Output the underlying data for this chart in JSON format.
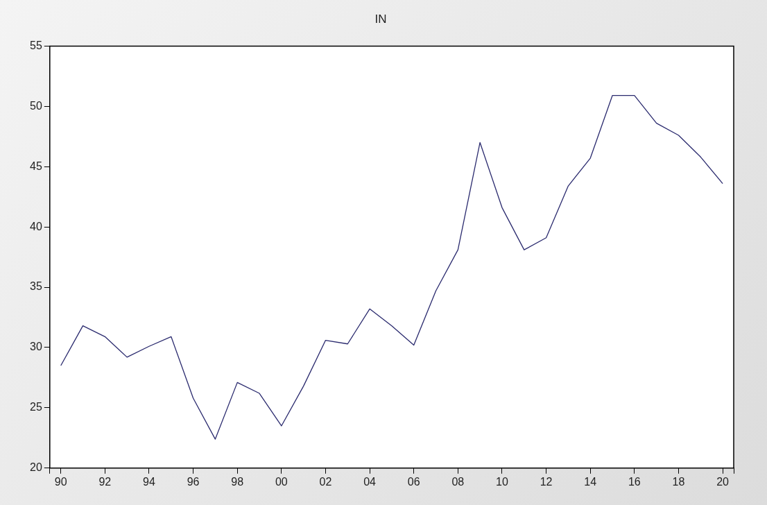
{
  "chart_data": {
    "type": "line",
    "title": "IN",
    "x": [
      1990,
      1991,
      1992,
      1993,
      1994,
      1995,
      1996,
      1997,
      1998,
      1999,
      2000,
      2001,
      2002,
      2003,
      2004,
      2005,
      2006,
      2007,
      2008,
      2009,
      2010,
      2011,
      2012,
      2013,
      2014,
      2015,
      2016,
      2017,
      2018,
      2019,
      2020
    ],
    "series": [
      {
        "color": "#2a2a6e",
        "values": [
          28.5,
          31.8,
          30.9,
          29.2,
          30.1,
          30.9,
          25.8,
          22.4,
          27.1,
          26.2,
          23.5,
          26.8,
          30.6,
          30.3,
          33.2,
          31.8,
          30.2,
          34.7,
          38.1,
          47.0,
          41.6,
          38.1,
          39.1,
          43.4,
          45.7,
          50.9,
          50.9,
          48.6,
          47.6,
          45.8,
          43.6
        ]
      }
    ],
    "xlim": [
      1989.5,
      2020.5
    ],
    "xticks": [
      {
        "value": 1989.5,
        "label": null
      },
      {
        "value": 1990,
        "label": "90"
      },
      {
        "value": 1992,
        "label": "92"
      },
      {
        "value": 1994,
        "label": "94"
      },
      {
        "value": 1996,
        "label": "96"
      },
      {
        "value": 1998,
        "label": "98"
      },
      {
        "value": 2000,
        "label": "00"
      },
      {
        "value": 2002,
        "label": "02"
      },
      {
        "value": 2004,
        "label": "04"
      },
      {
        "value": 2006,
        "label": "06"
      },
      {
        "value": 2008,
        "label": "08"
      },
      {
        "value": 2010,
        "label": "10"
      },
      {
        "value": 2012,
        "label": "12"
      },
      {
        "value": 2014,
        "label": "14"
      },
      {
        "value": 2016,
        "label": "16"
      },
      {
        "value": 2018,
        "label": "18"
      },
      {
        "value": 2020,
        "label": "20"
      },
      {
        "value": 2020.5,
        "label": null
      }
    ],
    "ylim": [
      20,
      55
    ],
    "yticks": [
      20,
      25,
      30,
      35,
      40,
      45,
      50,
      55
    ],
    "grid": false,
    "legend": false,
    "marker": "none",
    "line_style": "solid"
  }
}
